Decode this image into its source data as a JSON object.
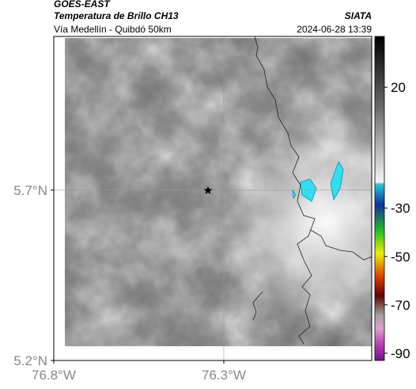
{
  "header": {
    "source": "GOES-EAST",
    "product": "Temperatura de Brillo CH13",
    "agency": "SIATA",
    "region": "Vía Medellín - Quibdó 50km",
    "datetime": "2024-06-28 13:39"
  },
  "map": {
    "xlim": [
      -76.8,
      -75.865
    ],
    "ylim": [
      5.2,
      6.151
    ],
    "xticks": [
      {
        "value": -76.8,
        "label": "76.8°W"
      },
      {
        "value": -76.3,
        "label": "76.3°W"
      }
    ],
    "yticks": [
      {
        "value": 5.2,
        "label": "5.2°N"
      },
      {
        "value": 5.7,
        "label": "5.7°N"
      }
    ],
    "grid": true
  },
  "colorbar": {
    "lim": [
      -93,
      41
    ],
    "ticks": [
      20,
      -30,
      -50,
      -70,
      -90
    ]
  }
}
